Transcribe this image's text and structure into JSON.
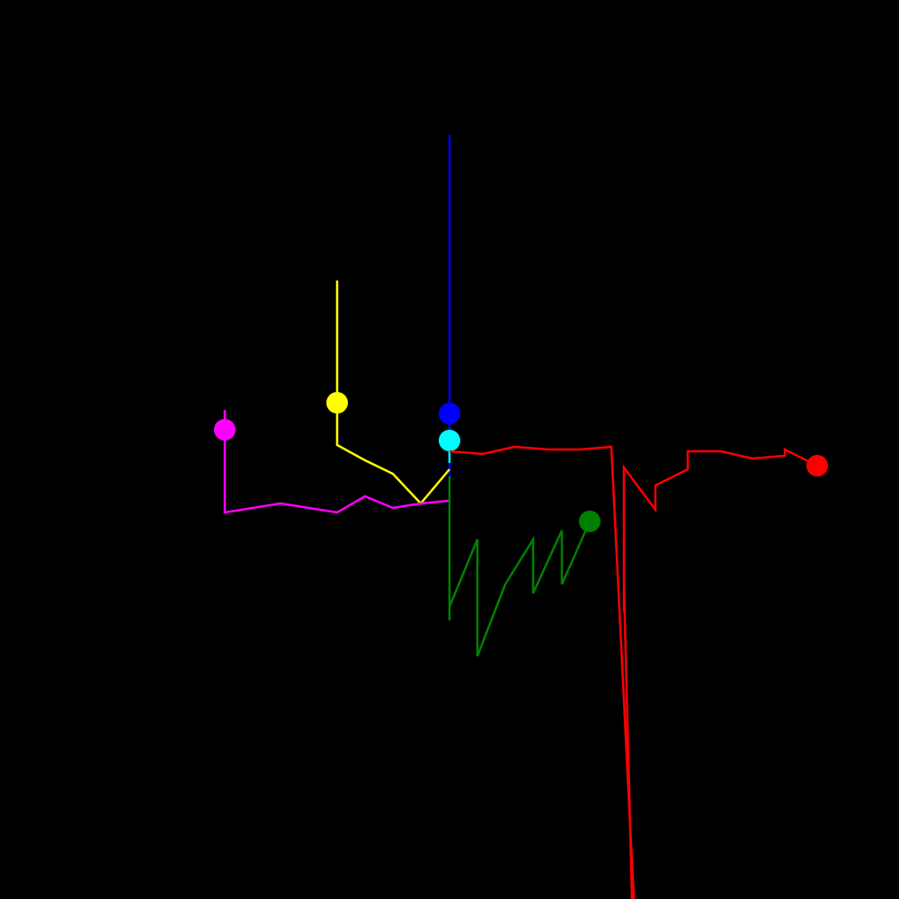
{
  "scene": {
    "background_color": "#000000",
    "trails": [
      {
        "name": "blue-trail",
        "color": "#0000ff"
      },
      {
        "name": "cyan-trail",
        "color": "#00ffff"
      },
      {
        "name": "yellow-trail",
        "color": "#ffff00"
      },
      {
        "name": "magenta-trail",
        "color": "#ff00ff"
      },
      {
        "name": "green-trail",
        "color": "#008000"
      },
      {
        "name": "red-trail",
        "color": "#ff0000"
      }
    ]
  }
}
